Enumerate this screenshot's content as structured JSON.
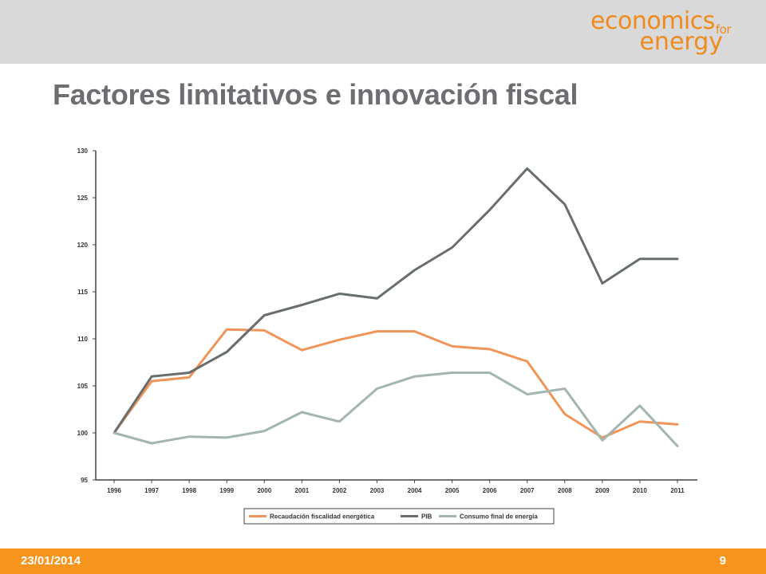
{
  "header": {
    "logo_line1": "economics",
    "logo_for": "for",
    "logo_line2": "energy"
  },
  "slide": {
    "title": "Factores limitativos e innovación fiscal"
  },
  "footer": {
    "date": "23/01/2014",
    "page": "9"
  },
  "colors": {
    "recaudacion": "#f0955a",
    "pib": "#686e6e",
    "consumo": "#a3b5b0",
    "accent": "#f7941d"
  },
  "chart_data": {
    "type": "line",
    "title": "",
    "xlabel": "",
    "ylabel": "",
    "x": [
      "1996",
      "1997",
      "1998",
      "1999",
      "2000",
      "2001",
      "2002",
      "2003",
      "2004",
      "2005",
      "2006",
      "2007",
      "2008",
      "2009",
      "2010",
      "2011"
    ],
    "yticks": [
      95,
      100,
      105,
      110,
      115,
      120,
      125,
      130
    ],
    "ylim": [
      95,
      130
    ],
    "grid": false,
    "legend_position": "bottom",
    "series": [
      {
        "key": "recaudacion",
        "name": "Recaudación fiscalidad energética",
        "values": [
          100,
          105.5,
          105.9,
          111.0,
          110.9,
          108.8,
          109.9,
          110.8,
          110.8,
          109.2,
          108.9,
          107.6,
          102.0,
          99.5,
          101.2,
          100.9
        ]
      },
      {
        "key": "pib",
        "name": "PIB",
        "values": [
          100,
          106.0,
          106.4,
          108.6,
          112.5,
          113.6,
          114.8,
          114.3,
          117.3,
          119.7,
          123.7,
          128.1,
          124.3,
          115.9,
          118.5,
          118.5
        ]
      },
      {
        "key": "consumo",
        "name": "Consumo final de energía",
        "values": [
          100,
          98.9,
          99.6,
          99.5,
          100.2,
          102.2,
          101.2,
          104.7,
          106.0,
          106.4,
          106.4,
          104.1,
          104.7,
          99.2,
          102.9,
          98.6
        ]
      }
    ]
  }
}
